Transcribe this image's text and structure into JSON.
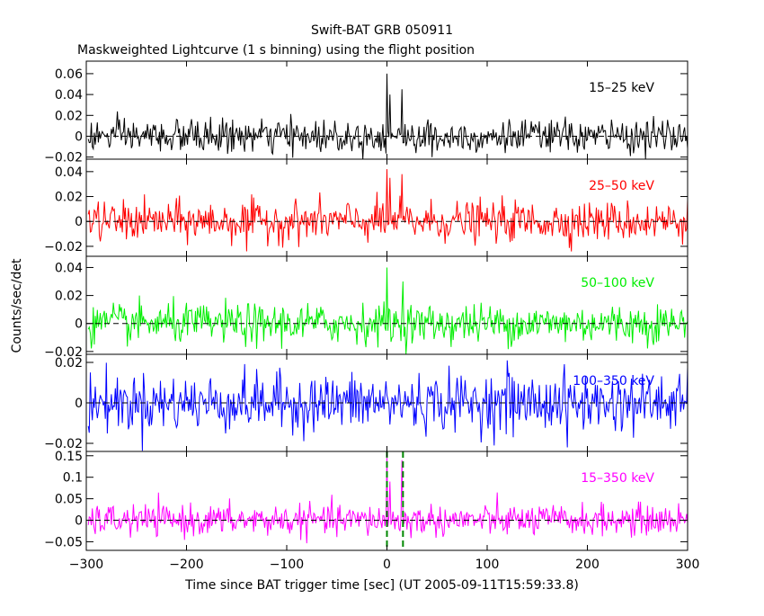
{
  "figure": {
    "title": "Swift-BAT GRB 050911",
    "subtitle": "Maskweighted Lightcurve (1 s binning) using the flight position",
    "xlabel": "Time since BAT trigger time [sec] (UT 2005-09-11T15:59:33.8)",
    "ylabel": "Counts/sec/det"
  },
  "chart_data": [
    {
      "type": "line",
      "band": "15–25 keV",
      "color": "#000000",
      "xlim": [
        -300,
        300
      ],
      "ylim": [
        -0.022,
        0.072
      ],
      "yticks": [
        -0.02,
        0,
        0.02,
        0.04,
        0.06
      ],
      "yticklabels": [
        "−0.02",
        "0",
        "0.02",
        "0.04",
        "0.06"
      ],
      "noise_sigma": 0.008,
      "peaks": [
        {
          "x": 0,
          "y": 0.06
        },
        {
          "x": 3,
          "y": 0.04
        },
        {
          "x": 15,
          "y": 0.045
        },
        {
          "x": 45,
          "y": -0.02
        }
      ]
    },
    {
      "type": "line",
      "band": "25–50 keV",
      "color": "#ff0000",
      "xlim": [
        -300,
        300
      ],
      "ylim": [
        -0.028,
        0.05
      ],
      "yticks": [
        -0.02,
        0,
        0.02,
        0.04
      ],
      "yticklabels": [
        "−0.02",
        "0",
        "0.02",
        "0.04"
      ],
      "noise_sigma": 0.008,
      "peaks": [
        {
          "x": 0,
          "y": 0.042
        },
        {
          "x": 3,
          "y": 0.035
        },
        {
          "x": 15,
          "y": 0.038
        },
        {
          "x": -140,
          "y": -0.024
        }
      ]
    },
    {
      "type": "line",
      "band": "50–100 keV",
      "color": "#00ee00",
      "xlim": [
        -300,
        300
      ],
      "ylim": [
        -0.022,
        0.048
      ],
      "yticks": [
        -0.02,
        0,
        0.02,
        0.04
      ],
      "yticklabels": [
        "−0.02",
        "0",
        "0.02",
        "0.04"
      ],
      "noise_sigma": 0.007,
      "peaks": [
        {
          "x": 0,
          "y": 0.04
        },
        {
          "x": 16,
          "y": 0.03
        },
        {
          "x": -130,
          "y": -0.018
        }
      ]
    },
    {
      "type": "line",
      "band": "100–350 keV",
      "color": "#0000ff",
      "xlim": [
        -300,
        300
      ],
      "ylim": [
        -0.024,
        0.024
      ],
      "yticks": [
        -0.02,
        0,
        0.02
      ],
      "yticklabels": [
        "−0.02",
        "0",
        "0.02"
      ],
      "noise_sigma": 0.007,
      "peaks": [
        {
          "x": 120,
          "y": 0.021
        },
        {
          "x": 180,
          "y": -0.022
        }
      ]
    },
    {
      "type": "line",
      "band": "15–350 keV",
      "color": "#ff00ff",
      "xlim": [
        -300,
        300
      ],
      "ylim": [
        -0.07,
        0.16
      ],
      "yticks": [
        -0.05,
        0,
        0.05,
        0.1,
        0.15
      ],
      "yticklabels": [
        "−0.05",
        "0",
        "0.05",
        "0.1",
        "0.15"
      ],
      "noise_sigma": 0.018,
      "peaks": [
        {
          "x": 0,
          "y": 0.15
        },
        {
          "x": 3,
          "y": 0.09
        },
        {
          "x": 15,
          "y": 0.14
        }
      ],
      "vlines": [
        0,
        16
      ]
    }
  ],
  "xaxis": {
    "ticks": [
      -300,
      -200,
      -100,
      0,
      100,
      200,
      300
    ],
    "ticklabels": [
      "−300",
      "−200",
      "−100",
      "0",
      "100",
      "200",
      "300"
    ]
  }
}
